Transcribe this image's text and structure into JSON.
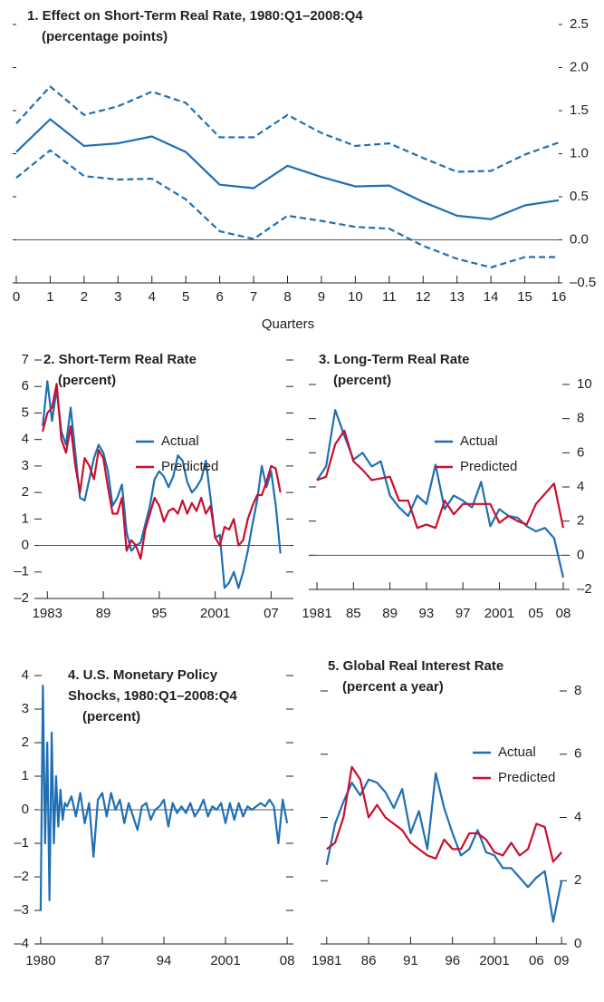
{
  "chart_data": [
    {
      "type": "line",
      "title": "1. Effect on Short-Term Real Rate, 1980:Q1–2008:Q4",
      "subtitle": "(percentage points)",
      "x_label": "Quarters",
      "x": [
        0,
        1,
        2,
        3,
        4,
        5,
        6,
        7,
        8,
        9,
        10,
        11,
        12,
        13,
        14,
        15,
        16
      ],
      "series": [
        {
          "color": "#1f6fb4",
          "dash": false,
          "values": [
            1.02,
            1.4,
            1.09,
            1.12,
            1.2,
            1.02,
            0.64,
            0.6,
            0.86,
            0.73,
            0.62,
            0.63,
            0.44,
            0.28,
            0.24,
            0.4,
            0.46
          ]
        },
        {
          "color": "#1f6fb4",
          "dash": true,
          "values": [
            1.35,
            1.78,
            1.45,
            1.55,
            1.72,
            1.59,
            1.19,
            1.19,
            1.45,
            1.24,
            1.09,
            1.12,
            0.95,
            0.79,
            0.8,
            0.99,
            1.13
          ]
        },
        {
          "color": "#1f6fb4",
          "dash": true,
          "values": [
            0.72,
            1.04,
            0.74,
            0.7,
            0.71,
            0.47,
            0.1,
            0.01,
            0.28,
            0.22,
            0.15,
            0.13,
            -0.07,
            -0.22,
            -0.32,
            -0.2,
            -0.2
          ]
        }
      ],
      "xlim": [
        0,
        16
      ],
      "xticks": [
        0,
        1,
        2,
        3,
        4,
        5,
        6,
        7,
        8,
        9,
        10,
        11,
        12,
        13,
        14,
        15,
        16
      ],
      "ylim": [
        -0.5,
        2.5
      ],
      "yticks": [
        {
          "value": -0.5,
          "label": "–0.5"
        },
        {
          "value": 0,
          "label": "0.0"
        },
        {
          "value": 0.5,
          "label": "0.5"
        },
        {
          "value": 1,
          "label": "1.0"
        },
        {
          "value": 1.5,
          "label": "1.5"
        },
        {
          "value": 2,
          "label": "2.0"
        },
        {
          "value": 2.5,
          "label": "2.5"
        }
      ],
      "y_axis_side": "right",
      "zero_line": true
    },
    {
      "type": "line",
      "title": "2. Short-Term Real Rate",
      "subtitle": "(percent)",
      "x": [
        1982.5,
        1983,
        1983.5,
        1984,
        1984.5,
        1985,
        1985.5,
        1986,
        1986.5,
        1987,
        1987.5,
        1988,
        1988.5,
        1989,
        1989.5,
        1990,
        1990.5,
        1991,
        1991.5,
        1992,
        1992.5,
        1993,
        1993.5,
        1994,
        1994.5,
        1995,
        1995.5,
        1996,
        1996.5,
        1997,
        1997.5,
        1998,
        1998.5,
        1999,
        1999.5,
        2000,
        2000.5,
        2001,
        2001.5,
        2002,
        2002.5,
        2003,
        2003.5,
        2004,
        2004.5,
        2005,
        2005.5,
        2006,
        2006.5,
        2007,
        2007.5,
        2008
      ],
      "series": [
        {
          "name": "Actual",
          "color": "#1f6fb4",
          "values": [
            4.5,
            6.2,
            4.7,
            5.9,
            4.3,
            3.8,
            5.2,
            3.5,
            1.8,
            1.7,
            2.5,
            3.3,
            3.8,
            3.5,
            2.8,
            1.5,
            1.8,
            2.3,
            0.5,
            -0.2,
            0.0,
            0.1,
            0.8,
            1.5,
            2.5,
            2.8,
            2.6,
            2.2,
            2.6,
            3.4,
            3.2,
            2.4,
            2.0,
            2.2,
            2.5,
            3.2,
            1.8,
            0.3,
            0.4,
            -1.6,
            -1.4,
            -1.0,
            -1.6,
            -1.0,
            -0.2,
            0.8,
            1.7,
            3.0,
            2.2,
            2.8,
            1.5,
            -0.3
          ]
        },
        {
          "name": "Predicted",
          "color": "#c8102e",
          "values": [
            4.3,
            5.0,
            5.2,
            6.1,
            4.0,
            3.5,
            4.5,
            3.0,
            2.0,
            3.3,
            3.0,
            2.5,
            3.6,
            3.3,
            2.2,
            1.2,
            1.2,
            1.8,
            -0.2,
            0.2,
            0.0,
            -0.5,
            0.6,
            1.2,
            1.8,
            1.5,
            0.9,
            1.3,
            1.4,
            1.2,
            1.7,
            1.2,
            1.6,
            1.3,
            1.8,
            1.2,
            1.5,
            0.3,
            0.0,
            0.7,
            0.6,
            1.0,
            0.0,
            0.2,
            1.0,
            1.5,
            1.9,
            1.9,
            2.4,
            3.0,
            2.9,
            2.0
          ]
        }
      ],
      "xlim": [
        1982,
        2009
      ],
      "xticks": [
        1983,
        {
          "value": 1989,
          "label": "89"
        },
        {
          "value": 1995,
          "label": "95"
        },
        2001,
        {
          "value": 2007,
          "label": "07"
        }
      ],
      "ylim": [
        -2,
        7
      ],
      "yticks": [
        {
          "value": -2,
          "label": "–2"
        },
        {
          "value": -1,
          "label": "–1"
        },
        {
          "value": 0,
          "label": "0"
        },
        {
          "value": 1,
          "label": "1"
        },
        {
          "value": 2,
          "label": "2"
        },
        {
          "value": 3,
          "label": "3"
        },
        {
          "value": 4,
          "label": "4"
        },
        {
          "value": 5,
          "label": "5"
        },
        {
          "value": 6,
          "label": "6"
        },
        {
          "value": 7,
          "label": "7"
        }
      ],
      "y_axis_side": "left",
      "zero_line": true,
      "legend": "upper right"
    },
    {
      "type": "line",
      "title": "3. Long-Term Real Rate",
      "subtitle": "(percent)",
      "x": [
        1981,
        1982,
        1983,
        1984,
        1985,
        1986,
        1987,
        1988,
        1989,
        1990,
        1991,
        1992,
        1993,
        1994,
        1995,
        1996,
        1997,
        1998,
        1999,
        2000,
        2001,
        2002,
        2003,
        2004,
        2005,
        2006,
        2007,
        2008
      ],
      "series": [
        {
          "name": "Actual",
          "color": "#1f6fb4",
          "values": [
            4.4,
            5.2,
            8.5,
            7.0,
            5.6,
            6.0,
            5.2,
            5.5,
            3.5,
            2.8,
            2.3,
            3.5,
            3.0,
            5.3,
            2.7,
            3.5,
            3.2,
            2.8,
            4.3,
            1.7,
            2.7,
            2.3,
            2.2,
            1.7,
            1.4,
            1.6,
            1.0,
            -1.3
          ]
        },
        {
          "name": "Predicted",
          "color": "#c8102e",
          "values": [
            4.4,
            4.6,
            6.5,
            7.3,
            5.5,
            5.0,
            4.4,
            4.5,
            4.6,
            3.2,
            3.2,
            1.6,
            1.8,
            1.6,
            3.2,
            2.4,
            3.0,
            3.0,
            3.0,
            3.0,
            1.9,
            2.3,
            2.0,
            1.8,
            3.0,
            3.6,
            4.2,
            1.6
          ]
        }
      ],
      "xlim": [
        1980.5,
        2008.3
      ],
      "xticks": [
        1981,
        {
          "value": 1985,
          "label": "85"
        },
        {
          "value": 1989,
          "label": "89"
        },
        {
          "value": 1993,
          "label": "93"
        },
        {
          "value": 1997,
          "label": "97"
        },
        2001,
        {
          "value": 2005,
          "label": "05"
        },
        {
          "value": 2008,
          "label": "08"
        }
      ],
      "ylim": [
        -2,
        10
      ],
      "yticks": [
        {
          "value": -2,
          "label": "–2"
        },
        {
          "value": 0,
          "label": "0"
        },
        {
          "value": 2,
          "label": "2"
        },
        {
          "value": 4,
          "label": "4"
        },
        {
          "value": 6,
          "label": "6"
        },
        {
          "value": 8,
          "label": "8"
        },
        {
          "value": 10,
          "label": "10"
        }
      ],
      "y_axis_side": "right",
      "zero_line": true,
      "legend": "upper right"
    },
    {
      "type": "line",
      "title": [
        "4. U.S. Monetary Policy",
        "Shocks, 1980:Q1–2008:Q4"
      ],
      "subtitle": "(percent)",
      "x": [
        1980,
        1980.25,
        1980.5,
        1980.75,
        1981,
        1981.25,
        1981.5,
        1981.75,
        1982,
        1982.25,
        1982.5,
        1982.75,
        1983,
        1983.5,
        1984,
        1984.5,
        1985,
        1985.5,
        1986,
        1986.5,
        1987,
        1987.5,
        1988,
        1988.5,
        1989,
        1989.5,
        1990,
        1990.5,
        1991,
        1991.5,
        1992,
        1992.5,
        1993,
        1993.5,
        1994,
        1994.5,
        1995,
        1995.5,
        1996,
        1996.5,
        1997,
        1997.5,
        1998,
        1998.5,
        1999,
        1999.5,
        2000,
        2000.5,
        2001,
        2001.5,
        2002,
        2002.5,
        2003,
        2003.5,
        2004,
        2004.5,
        2005,
        2005.5,
        2006,
        2006.5,
        2007,
        2007.5,
        2008
      ],
      "series": [
        {
          "color": "#1f6fb4",
          "values": [
            -3.0,
            3.7,
            -1.0,
            2.0,
            -2.7,
            2.3,
            -1.0,
            1.0,
            -0.5,
            0.6,
            -0.3,
            0.2,
            0.1,
            0.4,
            -0.2,
            0.5,
            -0.4,
            0.2,
            -1.4,
            0.3,
            0.5,
            -0.2,
            0.5,
            0.0,
            0.3,
            -0.4,
            0.2,
            -0.2,
            -0.6,
            0.1,
            0.2,
            -0.3,
            0.0,
            0.1,
            0.3,
            -0.5,
            0.2,
            -0.1,
            0.1,
            -0.1,
            0.2,
            -0.2,
            0.0,
            0.3,
            -0.2,
            0.1,
            0.0,
            0.2,
            -0.4,
            0.2,
            -0.3,
            0.2,
            -0.2,
            0.1,
            0.0,
            0.1,
            0.2,
            0.1,
            0.3,
            0.1,
            -1.0,
            0.3,
            -0.4
          ]
        }
      ],
      "xlim": [
        1979.7,
        2008.3
      ],
      "xticks": [
        1980,
        {
          "value": 1987,
          "label": "87"
        },
        {
          "value": 1994,
          "label": "94"
        },
        2001,
        {
          "value": 2008,
          "label": "08"
        }
      ],
      "ylim": [
        -4,
        4
      ],
      "yticks": [
        {
          "value": -4,
          "label": "–4"
        },
        {
          "value": -3,
          "label": "–3"
        },
        {
          "value": -2,
          "label": "–2"
        },
        {
          "value": -1,
          "label": "–1"
        },
        {
          "value": 0,
          "label": "0"
        },
        {
          "value": 1,
          "label": "1"
        },
        {
          "value": 2,
          "label": "2"
        },
        {
          "value": 3,
          "label": "3"
        },
        {
          "value": 4,
          "label": "4"
        }
      ],
      "y_axis_side": "left",
      "zero_line": true
    },
    {
      "type": "line",
      "title": "5. Global Real Interest Rate",
      "subtitle": "(percent a year)",
      "x": [
        1981,
        1982,
        1983,
        1984,
        1985,
        1986,
        1987,
        1988,
        1989,
        1990,
        1991,
        1992,
        1993,
        1994,
        1995,
        1996,
        1997,
        1998,
        1999,
        2000,
        2001,
        2002,
        2003,
        2004,
        2005,
        2006,
        2007,
        2008,
        2009
      ],
      "series": [
        {
          "name": "Actual",
          "color": "#1f6fb4",
          "values": [
            2.5,
            3.8,
            4.5,
            5.1,
            4.7,
            5.2,
            5.1,
            4.8,
            4.3,
            4.9,
            3.5,
            4.2,
            3.0,
            5.4,
            4.3,
            3.5,
            2.8,
            3.0,
            3.6,
            2.9,
            2.8,
            2.4,
            2.4,
            2.1,
            1.8,
            2.1,
            2.3,
            0.7,
            2.0
          ]
        },
        {
          "name": "Predicted",
          "color": "#c8102e",
          "values": [
            3.0,
            3.2,
            4.0,
            5.6,
            5.2,
            4.0,
            4.4,
            4.0,
            3.8,
            3.6,
            3.2,
            3.0,
            2.8,
            2.7,
            3.3,
            3.0,
            3.0,
            3.5,
            3.5,
            3.3,
            2.9,
            2.8,
            3.2,
            2.8,
            3.0,
            3.8,
            3.7,
            2.6,
            2.9
          ]
        }
      ],
      "xlim": [
        1980.7,
        2009.2
      ],
      "xticks": [
        1981,
        {
          "value": 1986,
          "label": "86"
        },
        {
          "value": 1991,
          "label": "91"
        },
        {
          "value": 1996,
          "label": "96"
        },
        2001,
        {
          "value": 2006,
          "label": "06"
        },
        {
          "value": 2009,
          "label": "09"
        }
      ],
      "ylim": [
        0,
        8
      ],
      "yticks": [
        {
          "value": 0,
          "label": "0"
        },
        {
          "value": 2,
          "label": "2"
        },
        {
          "value": 4,
          "label": "4"
        },
        {
          "value": 6,
          "label": "6"
        },
        {
          "value": 8,
          "label": "8"
        }
      ],
      "y_axis_side": "right",
      "zero_line": false,
      "legend": "upper right"
    }
  ]
}
